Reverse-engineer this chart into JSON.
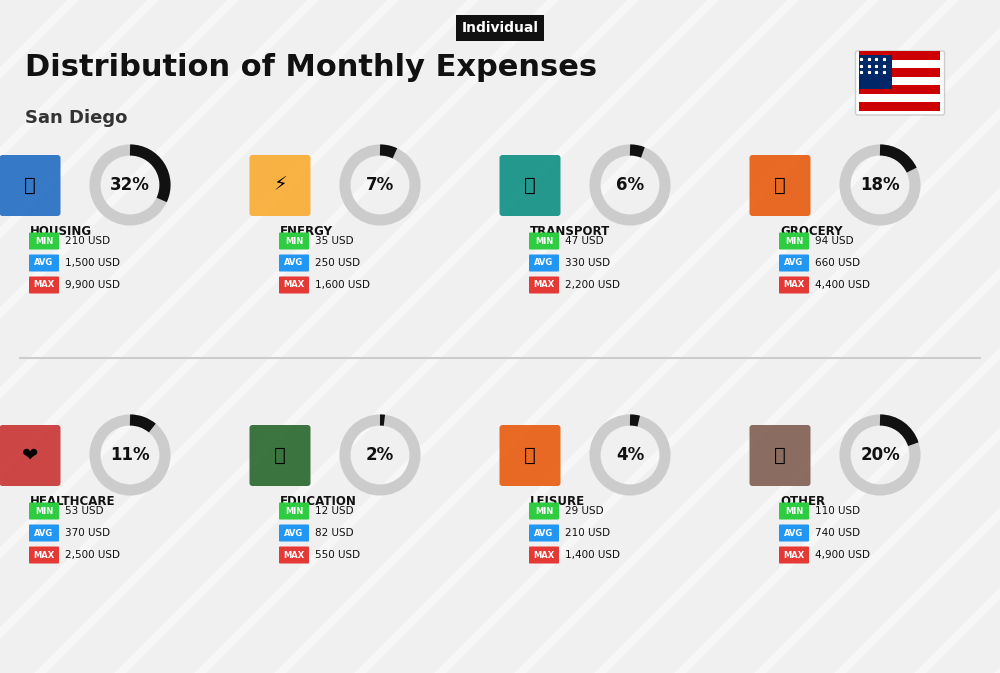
{
  "title": "Distribution of Monthly Expenses",
  "subtitle": "San Diego",
  "tag": "Individual",
  "bg_color": "#f0f0f0",
  "categories": [
    {
      "name": "HOUSING",
      "pct": 32,
      "min": "210 USD",
      "avg": "1,500 USD",
      "max": "9,900 USD",
      "row": 0,
      "col": 0
    },
    {
      "name": "ENERGY",
      "pct": 7,
      "min": "35 USD",
      "avg": "250 USD",
      "max": "1,600 USD",
      "row": 0,
      "col": 1
    },
    {
      "name": "TRANSPORT",
      "pct": 6,
      "min": "47 USD",
      "avg": "330 USD",
      "max": "2,200 USD",
      "row": 0,
      "col": 2
    },
    {
      "name": "GROCERY",
      "pct": 18,
      "min": "94 USD",
      "avg": "660 USD",
      "max": "4,400 USD",
      "row": 0,
      "col": 3
    },
    {
      "name": "HEALTHCARE",
      "pct": 11,
      "min": "53 USD",
      "avg": "370 USD",
      "max": "2,500 USD",
      "row": 1,
      "col": 0
    },
    {
      "name": "EDUCATION",
      "pct": 2,
      "min": "12 USD",
      "avg": "82 USD",
      "max": "550 USD",
      "row": 1,
      "col": 1
    },
    {
      "name": "LEISURE",
      "pct": 4,
      "min": "29 USD",
      "avg": "210 USD",
      "max": "1,400 USD",
      "row": 1,
      "col": 2
    },
    {
      "name": "OTHER",
      "pct": 20,
      "min": "110 USD",
      "avg": "740 USD",
      "max": "4,900 USD",
      "row": 1,
      "col": 3
    }
  ],
  "min_color": "#2ecc40",
  "avg_color": "#2196f3",
  "max_color": "#e53935",
  "label_text_color": "#ffffff",
  "value_text_color": "#111111",
  "category_color": "#111111",
  "donut_fg": "#111111",
  "donut_bg": "#cccccc",
  "donut_linewidth": 8,
  "tag_bg": "#111111",
  "tag_text_color": "#ffffff"
}
